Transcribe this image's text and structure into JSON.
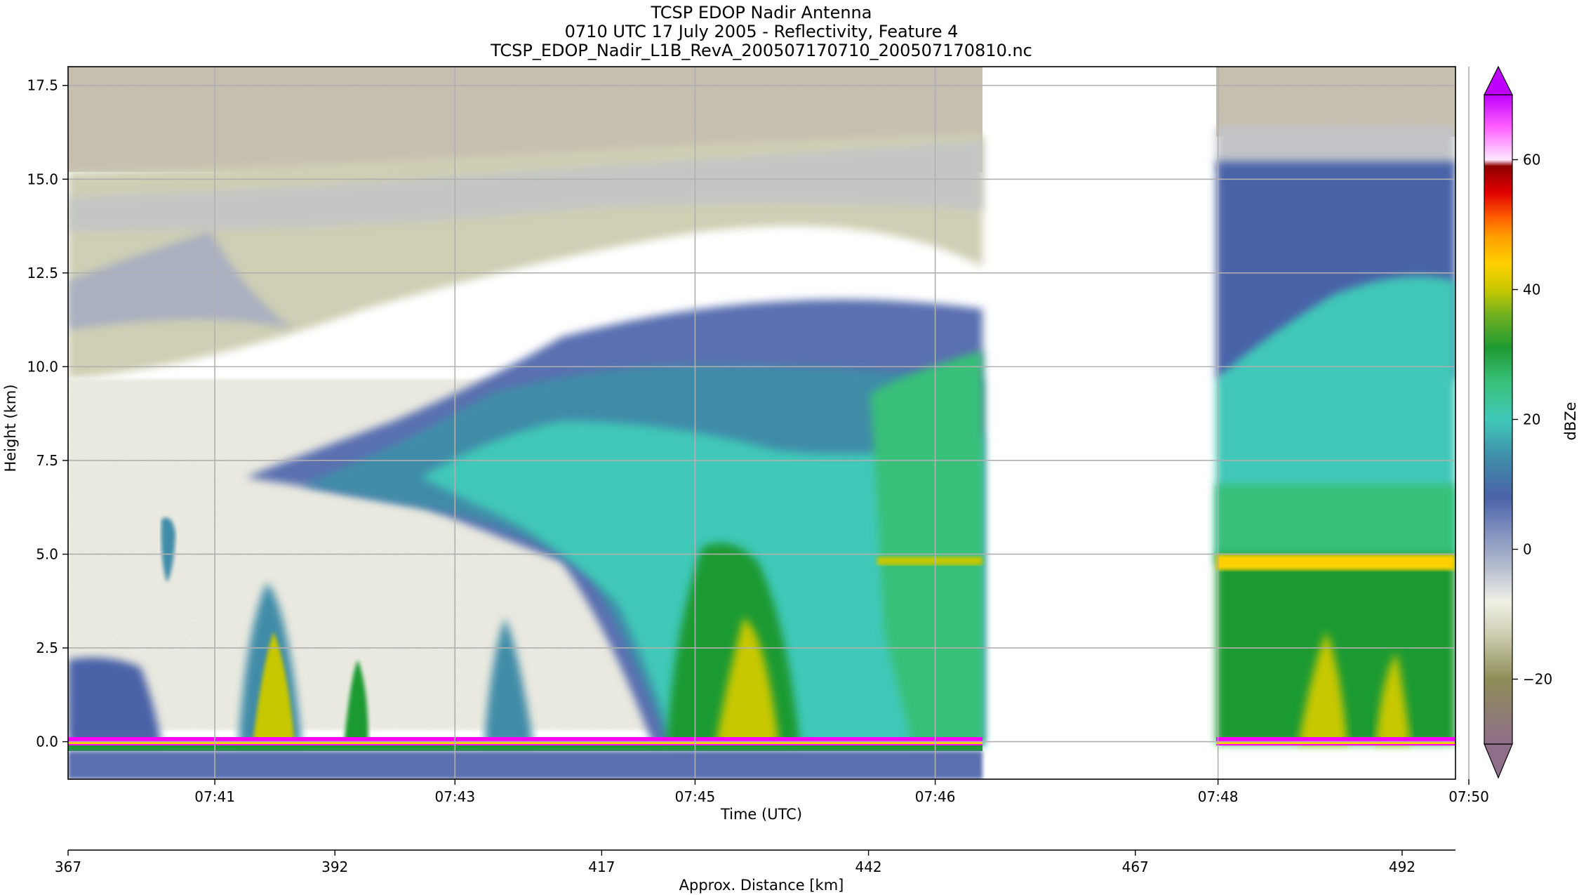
{
  "chart_data": {
    "type": "heatmap",
    "title": [
      "TCSP EDOP Nadir Antenna",
      "0710 UTC 17 July 2005 - Reflectivity, Feature 4",
      "TCSP_EDOP_Nadir_L1B_RevA_200507170710_200507170810.nc"
    ],
    "xlabel": "Time (UTC)",
    "ylabel": "Height (km)",
    "x_ticks": [
      "07:41",
      "07:43",
      "07:45",
      "07:46",
      "07:48",
      "07:50"
    ],
    "y_ticks": [
      "0.0",
      "2.5",
      "5.0",
      "7.5",
      "10.0",
      "12.5",
      "15.0",
      "17.5"
    ],
    "ylim": [
      -1.0,
      18.0
    ],
    "secondary_xlabel": "Approx. Distance [km]",
    "secondary_x_ticks": [
      "367",
      "392",
      "417",
      "442",
      "467",
      "492"
    ],
    "xlim_distance": [
      367,
      497
    ],
    "data_gap_distance_km": [
      452,
      474
    ],
    "colorbar": {
      "label": "dBZe",
      "ticks": [
        "−20",
        "0",
        "20",
        "40",
        "60"
      ],
      "range": [
        -30,
        70
      ],
      "extend": "both",
      "colors": [
        "#8f6e8a",
        "#8e8e58",
        "#cfcfb4",
        "#f0f0e6",
        "#b8bfcf",
        "#8896c0",
        "#4a62a8",
        "#3f8ca8",
        "#40c8b8",
        "#38c078",
        "#1e9a32",
        "#70b020",
        "#c8c800",
        "#ffd000",
        "#ffa000",
        "#ff6000",
        "#e00000",
        "#900000",
        "#ff60ff",
        "#c000ff"
      ]
    },
    "grid": true,
    "features": {
      "surface_echo_height_km": 0.0,
      "melting_layer_height_km": 4.8,
      "echo_top_height_km": 16.0,
      "convective_cores_distance_km": [
        388,
        396,
        421,
        432,
        491
      ]
    }
  }
}
